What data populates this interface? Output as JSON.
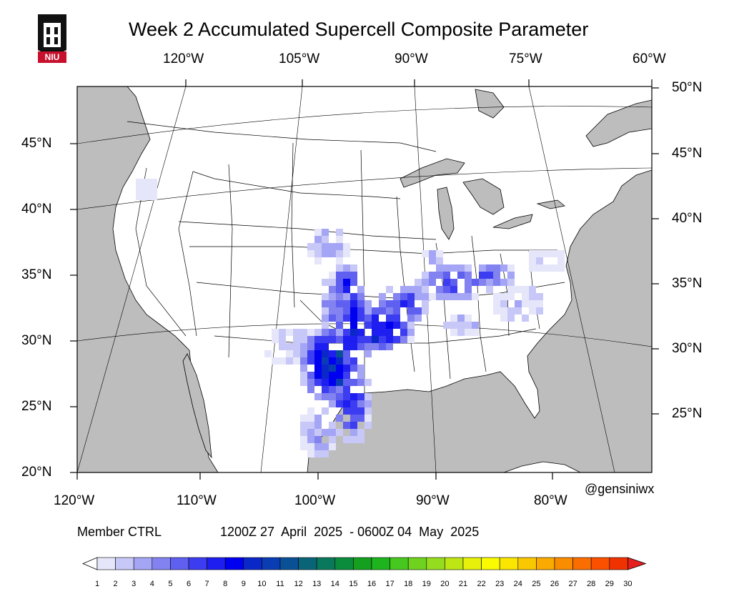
{
  "title": "Week 2 Accumulated Supercell Composite Parameter",
  "logo": {
    "text": "NIU",
    "icon": "university-tower-icon",
    "color": "#c8102e"
  },
  "top_longitude_labels": [
    "120°W",
    "105°W",
    "90°W",
    "75°W",
    "60°W"
  ],
  "bottom_longitude_labels": [
    "120°W",
    "110°W",
    "100°W",
    "90°W",
    "80°W"
  ],
  "left_latitude_labels": [
    "45°N",
    "40°N",
    "35°N",
    "30°N",
    "25°N",
    "20°N"
  ],
  "right_latitude_labels": [
    "50°N",
    "45°N",
    "40°N",
    "35°N",
    "30°N",
    "25°N"
  ],
  "credit": "@gensiniwx",
  "member_label": "Member CTRL",
  "valid_period": "1200Z 27  April  2025  - 0600Z 04  May  2025",
  "colors": {
    "ocean": "#bdbdbd",
    "land": "#ffffff",
    "border": "#000000"
  },
  "colorbar": {
    "labels": [
      "1",
      "2",
      "3",
      "4",
      "5",
      "6",
      "7",
      "8",
      "9",
      "10",
      "11",
      "12",
      "13",
      "14",
      "15",
      "16",
      "17",
      "18",
      "19",
      "20",
      "21",
      "22",
      "23",
      "24",
      "25",
      "26",
      "27",
      "28",
      "29",
      "30"
    ],
    "colors": [
      "#e6e6fa",
      "#c8c8f8",
      "#a5a5f5",
      "#8282f0",
      "#5f5ff0",
      "#3c3cf0",
      "#1e1ef0",
      "#0000f0",
      "#0a28c8",
      "#0a3cb4",
      "#0a5096",
      "#0a6478",
      "#0a785a",
      "#0a8c3c",
      "#14a01e",
      "#1eb41e",
      "#46c81e",
      "#6ed21e",
      "#96dc1e",
      "#bee614",
      "#e6f00a",
      "#fafa00",
      "#fae600",
      "#fac800",
      "#faaa00",
      "#fa8c00",
      "#fa6e00",
      "#fa5000",
      "#f03200",
      "#e61e1e"
    ]
  }
}
